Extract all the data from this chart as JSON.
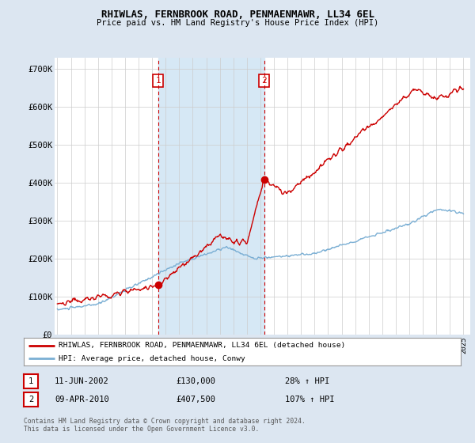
{
  "title": "RHIWLAS, FERNBROOK ROAD, PENMAENMAWR, LL34 6EL",
  "subtitle": "Price paid vs. HM Land Registry's House Price Index (HPI)",
  "bg_color": "#dce6f1",
  "plot_bg_color": "#ffffff",
  "ylabel_ticks": [
    "£0",
    "£100K",
    "£200K",
    "£300K",
    "£400K",
    "£500K",
    "£600K",
    "£700K"
  ],
  "ytick_values": [
    0,
    100000,
    200000,
    300000,
    400000,
    500000,
    600000,
    700000
  ],
  "ylim": [
    0,
    730000
  ],
  "xlim_start": 1994.8,
  "xlim_end": 2025.5,
  "sale1_x": 2002.44,
  "sale1_y": 130000,
  "sale2_x": 2010.27,
  "sale2_y": 407500,
  "vline1_x": 2002.44,
  "vline2_x": 2010.27,
  "legend_house_label": "RHIWLAS, FERNBROOK ROAD, PENMAENMAWR, LL34 6EL (detached house)",
  "legend_hpi_label": "HPI: Average price, detached house, Conwy",
  "table_row1": [
    "1",
    "11-JUN-2002",
    "£130,000",
    "28% ↑ HPI"
  ],
  "table_row2": [
    "2",
    "09-APR-2010",
    "£407,500",
    "107% ↑ HPI"
  ],
  "footer": "Contains HM Land Registry data © Crown copyright and database right 2024.\nThis data is licensed under the Open Government Licence v3.0.",
  "house_color": "#cc0000",
  "hpi_color": "#7bafd4",
  "shade_color": "#d6e8f5"
}
